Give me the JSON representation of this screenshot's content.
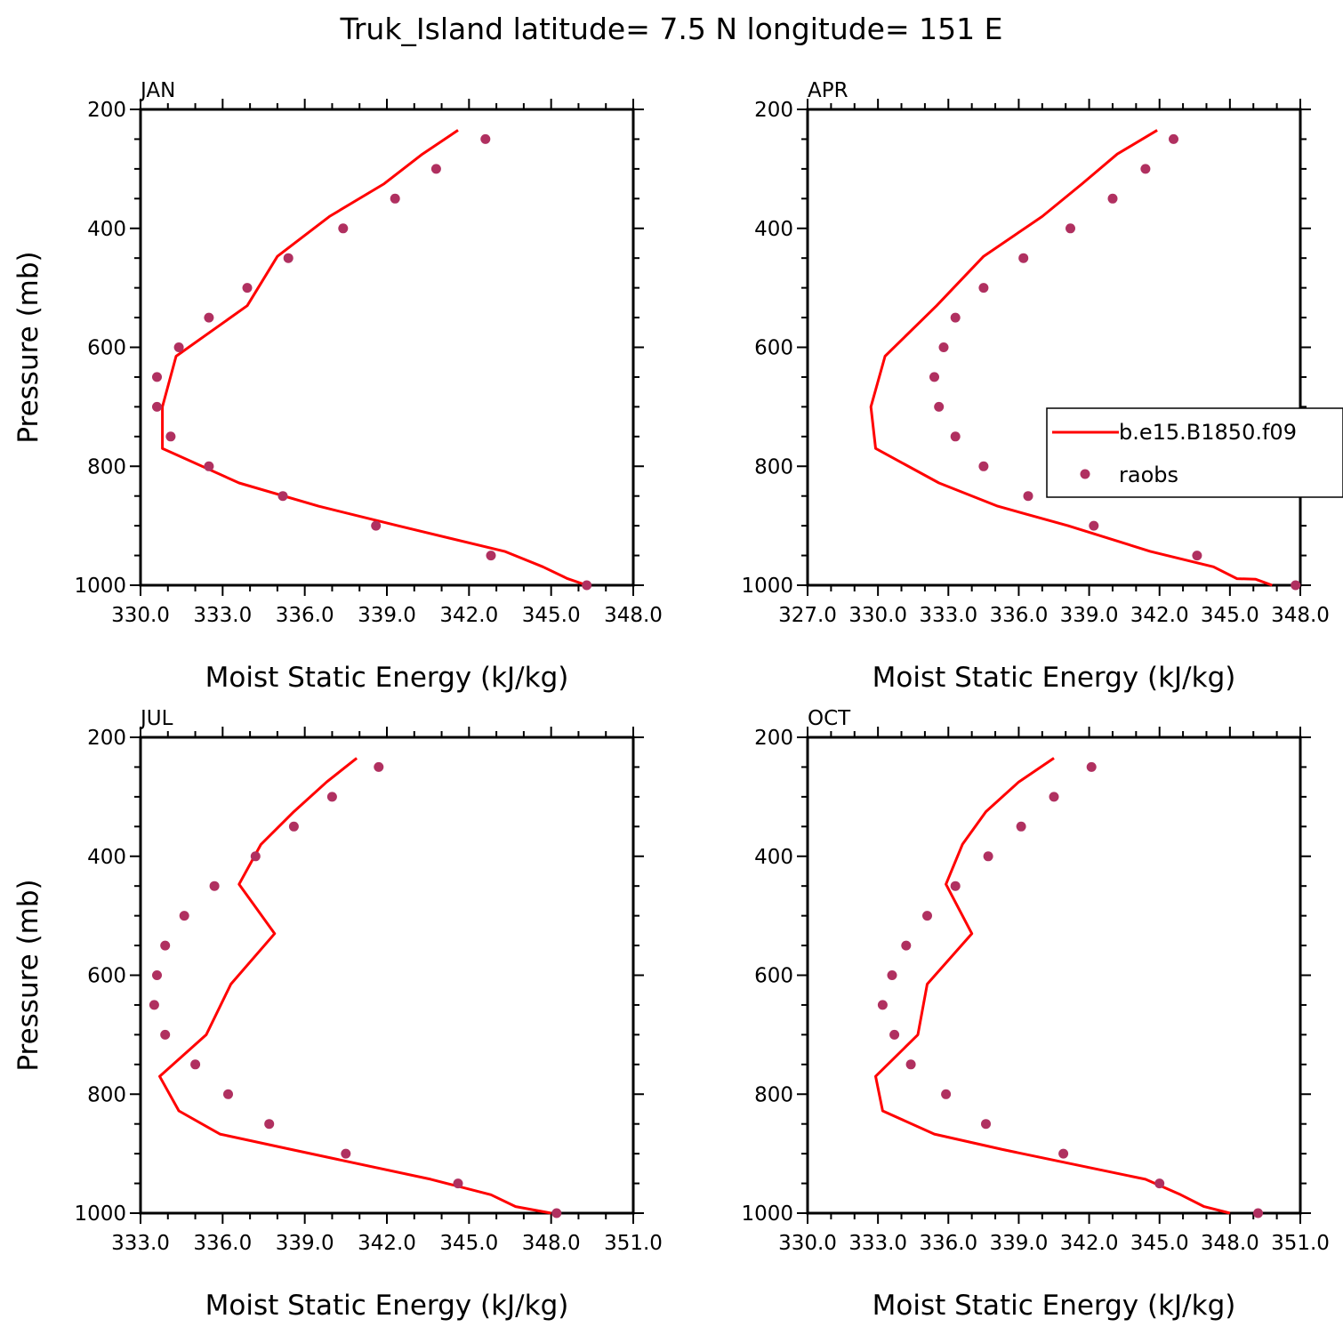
{
  "title": "Truk_Island  latitude= 7.5 N longitude= 151 E",
  "colors": {
    "model": "#ff0000",
    "obs": "#b03060"
  },
  "legend": {
    "model_label": "b.e15.B1850.f09",
    "obs_label": "raobs"
  },
  "chart_data": [
    {
      "type": "line",
      "panel": "JAN",
      "xlabel": "Moist Static Energy (kJ/kg)",
      "ylabel": "Pressure (mb)",
      "xlim": [
        330.0,
        348.0
      ],
      "ylim": [
        1000,
        200
      ],
      "y_reversed": true,
      "x_ticks": [
        330.0,
        333.0,
        336.0,
        339.0,
        342.0,
        345.0,
        348.0
      ],
      "x_tick_labels": [
        "330.0",
        "333.0",
        "336.0",
        "339.0",
        "342.0",
        "345.0",
        "348.0"
      ],
      "y_ticks": [
        200,
        400,
        600,
        800,
        1000
      ],
      "y_tick_labels": [
        "200",
        "400",
        "600",
        "800",
        "1000"
      ],
      "series": [
        {
          "name": "b.e15.B1850.f09",
          "style": "line",
          "x": [
            341.6,
            340.3,
            338.9,
            336.9,
            335.0,
            333.9,
            331.3,
            330.8,
            330.8,
            333.6,
            336.5,
            339.4,
            343.3,
            344.7,
            345.6,
            346.3
          ],
          "y": [
            235,
            275,
            325,
            380,
            447,
            530,
            615,
            700,
            770,
            828,
            867,
            900,
            943,
            969,
            989,
            1000
          ]
        },
        {
          "name": "raobs",
          "style": "scatter",
          "x": [
            342.6,
            340.8,
            339.3,
            337.4,
            335.4,
            333.9,
            332.5,
            331.4,
            330.6,
            330.6,
            331.1,
            332.5,
            335.2,
            338.6,
            342.8,
            346.3
          ],
          "y": [
            250,
            300,
            350,
            400,
            450,
            500,
            550,
            600,
            650,
            700,
            750,
            800,
            850,
            900,
            950,
            1000
          ]
        }
      ]
    },
    {
      "type": "line",
      "panel": "APR",
      "xlabel": "Moist Static Energy (kJ/kg)",
      "ylabel": "",
      "xlim": [
        327.0,
        348.0
      ],
      "ylim": [
        1000,
        200
      ],
      "y_reversed": true,
      "x_ticks": [
        327.0,
        330.0,
        333.0,
        336.0,
        339.0,
        342.0,
        345.0,
        348.0
      ],
      "x_tick_labels": [
        "327.0",
        "330.0",
        "333.0",
        "336.0",
        "339.0",
        "342.0",
        "345.0",
        "348.0"
      ],
      "y_ticks": [
        200,
        400,
        600,
        800,
        1000
      ],
      "y_tick_labels": [
        "200",
        "400",
        "600",
        "800",
        "1000"
      ],
      "legend_position": "right",
      "series": [
        {
          "name": "b.e15.B1850.f09",
          "style": "line",
          "x": [
            341.9,
            340.2,
            338.7,
            337.0,
            334.5,
            332.5,
            330.3,
            329.7,
            329.9,
            332.6,
            335.1,
            338.1,
            341.6,
            344.3,
            345.3,
            346.1,
            346.8
          ],
          "y": [
            235,
            275,
            325,
            380,
            447,
            530,
            615,
            700,
            770,
            828,
            867,
            900,
            943,
            969,
            989,
            990,
            1000
          ]
        },
        {
          "name": "raobs",
          "style": "scatter",
          "x": [
            342.6,
            341.4,
            340.0,
            338.2,
            336.2,
            334.5,
            333.3,
            332.8,
            332.4,
            332.6,
            333.3,
            334.5,
            336.4,
            339.2,
            343.6,
            347.8
          ],
          "y": [
            250,
            300,
            350,
            400,
            450,
            500,
            550,
            600,
            650,
            700,
            750,
            800,
            850,
            900,
            950,
            1000
          ]
        }
      ]
    },
    {
      "type": "line",
      "panel": "JUL",
      "xlabel": "Moist Static Energy (kJ/kg)",
      "ylabel": "Pressure (mb)",
      "xlim": [
        333.0,
        351.0
      ],
      "ylim": [
        1000,
        200
      ],
      "y_reversed": true,
      "x_ticks": [
        333.0,
        336.0,
        339.0,
        342.0,
        345.0,
        348.0,
        351.0
      ],
      "x_tick_labels": [
        "333.0",
        "336.0",
        "339.0",
        "342.0",
        "345.0",
        "348.0",
        "351.0"
      ],
      "y_ticks": [
        200,
        400,
        600,
        800,
        1000
      ],
      "y_tick_labels": [
        "200",
        "400",
        "600",
        "800",
        "1000"
      ],
      "series": [
        {
          "name": "b.e15.B1850.f09",
          "style": "line",
          "x": [
            340.9,
            339.8,
            338.6,
            337.4,
            336.6,
            337.9,
            336.3,
            335.4,
            333.7,
            334.4,
            335.9,
            338.5,
            343.6,
            345.8,
            346.7,
            348.0
          ],
          "y": [
            235,
            275,
            325,
            380,
            447,
            530,
            615,
            700,
            770,
            828,
            867,
            893,
            943,
            969,
            989,
            1000
          ]
        },
        {
          "name": "raobs",
          "style": "scatter",
          "x": [
            341.7,
            340.0,
            338.6,
            337.2,
            335.7,
            334.6,
            333.9,
            333.6,
            333.5,
            333.9,
            335.0,
            336.2,
            337.7,
            340.5,
            344.6,
            348.2
          ],
          "y": [
            250,
            300,
            350,
            400,
            450,
            500,
            550,
            600,
            650,
            700,
            750,
            800,
            850,
            900,
            950,
            1000
          ]
        }
      ]
    },
    {
      "type": "line",
      "panel": "OCT",
      "xlabel": "Moist Static Energy (kJ/kg)",
      "ylabel": "",
      "xlim": [
        330.0,
        351.0
      ],
      "ylim": [
        1000,
        200
      ],
      "y_reversed": true,
      "x_ticks": [
        330.0,
        333.0,
        336.0,
        339.0,
        342.0,
        345.0,
        348.0,
        351.0
      ],
      "x_tick_labels": [
        "330.0",
        "333.0",
        "336.0",
        "339.0",
        "342.0",
        "345.0",
        "348.0",
        "351.0"
      ],
      "y_ticks": [
        200,
        400,
        600,
        800,
        1000
      ],
      "y_tick_labels": [
        "200",
        "400",
        "600",
        "800",
        "1000"
      ],
      "series": [
        {
          "name": "b.e15.B1850.f09",
          "style": "line",
          "x": [
            340.5,
            339.0,
            337.6,
            336.6,
            335.9,
            337.0,
            335.1,
            334.7,
            332.9,
            333.2,
            335.4,
            338.3,
            344.4,
            345.9,
            346.9,
            348.0
          ],
          "y": [
            235,
            275,
            325,
            380,
            447,
            530,
            615,
            700,
            770,
            828,
            867,
            893,
            943,
            969,
            989,
            1000
          ]
        },
        {
          "name": "raobs",
          "style": "scatter",
          "x": [
            342.1,
            340.5,
            339.1,
            337.7,
            336.3,
            335.1,
            334.2,
            333.6,
            333.2,
            333.7,
            334.4,
            335.9,
            337.6,
            340.9,
            345.0,
            349.2
          ],
          "y": [
            250,
            300,
            350,
            400,
            450,
            500,
            550,
            600,
            650,
            700,
            750,
            800,
            850,
            900,
            950,
            1000
          ]
        }
      ]
    }
  ]
}
